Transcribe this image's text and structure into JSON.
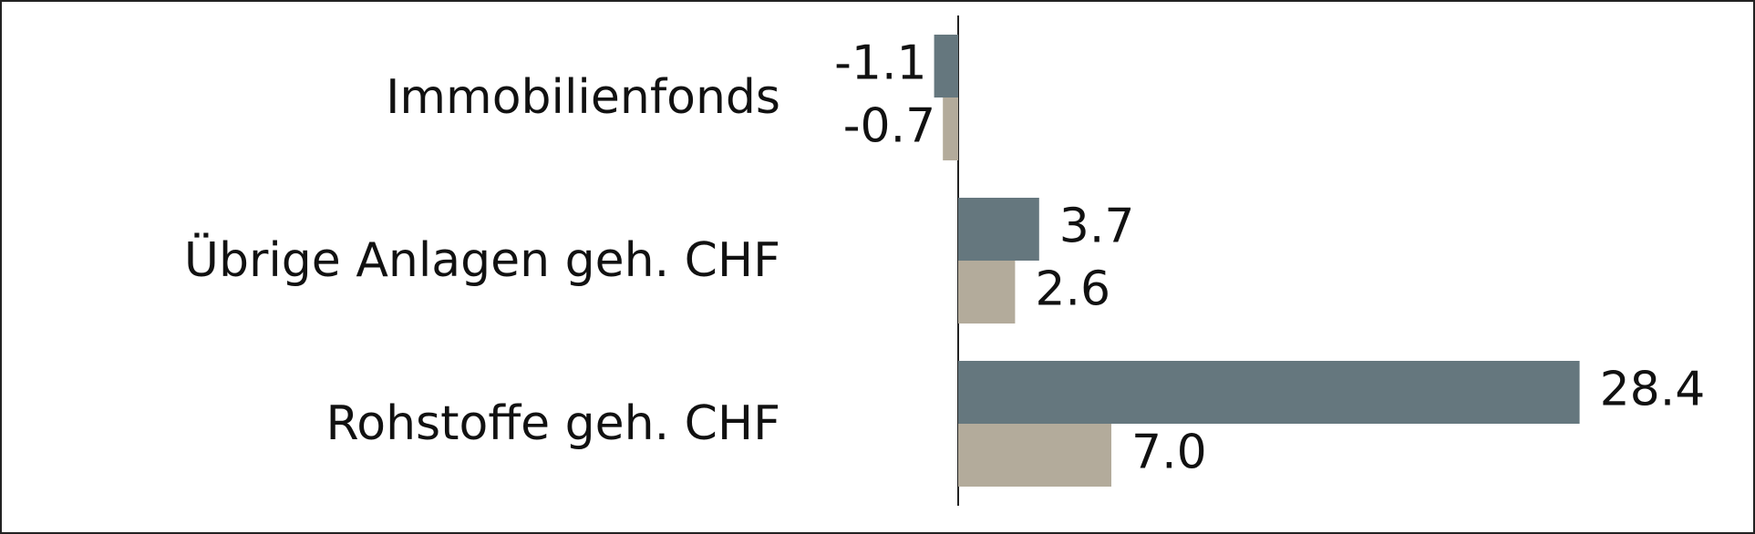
{
  "chart_data": {
    "type": "bar",
    "orientation": "horizontal",
    "categories": [
      "Immobilienfonds",
      "Übrige Anlagen geh. CHF",
      "Rohstoffe geh. CHF"
    ],
    "series": [
      {
        "color": "#65777e",
        "values": [
          -1.1,
          3.7,
          28.4
        ],
        "value_labels": [
          "-1.1",
          "3.7",
          "28.4"
        ]
      },
      {
        "color": "#b3ab9b",
        "values": [
          -0.7,
          2.6,
          7.0
        ],
        "value_labels": [
          "-0.7",
          "2.6",
          "7.0"
        ]
      }
    ]
  }
}
